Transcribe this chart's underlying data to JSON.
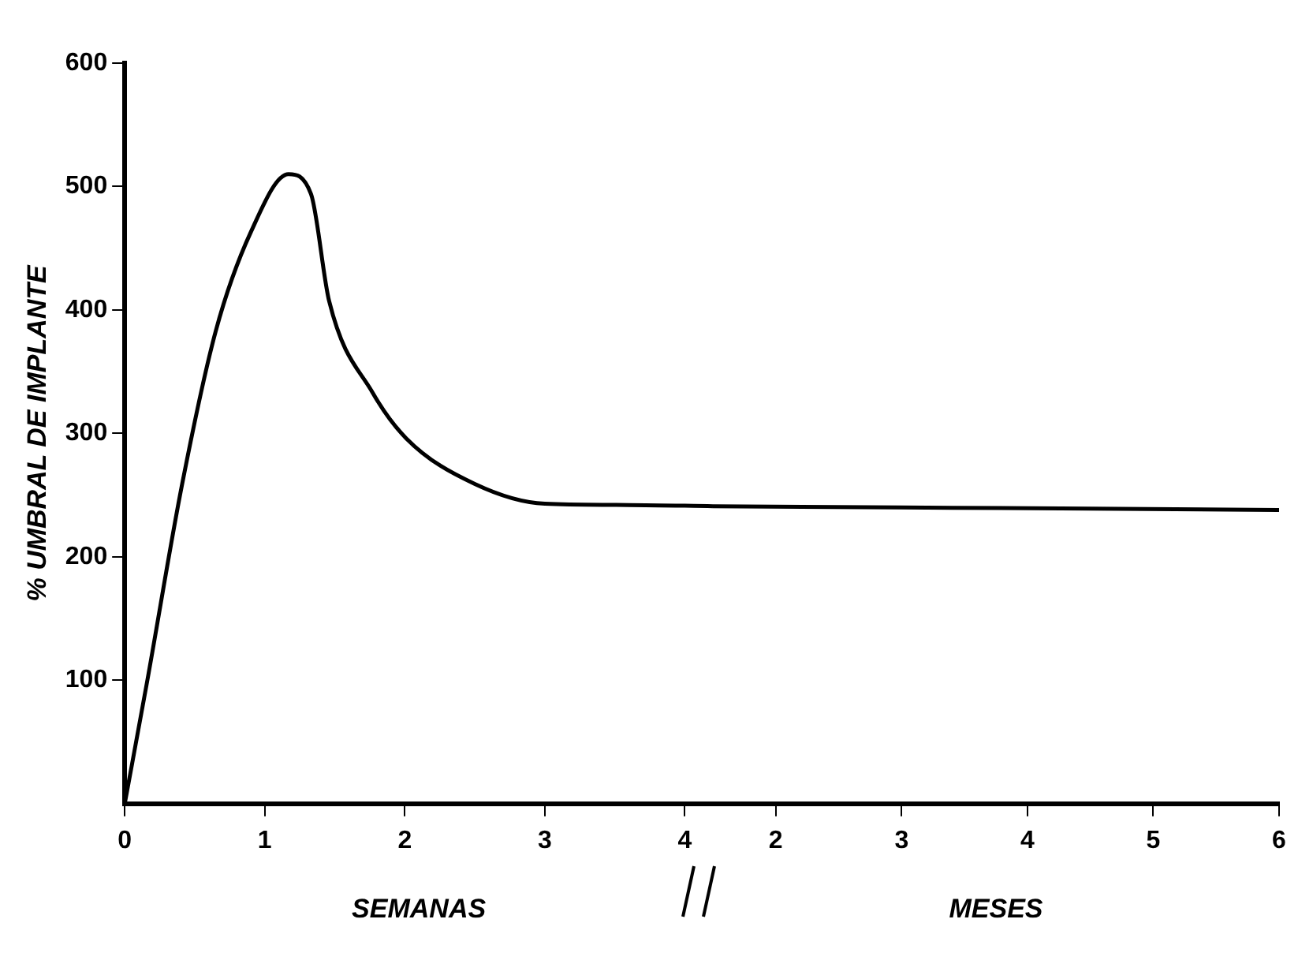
{
  "chart_data": [
    {
      "type": "line",
      "ylabel": "% UMBRAL DE IMPLANTE",
      "xlabel": "SEMANAS",
      "x": [
        0,
        0.16,
        0.41,
        0.65,
        0.9,
        1.17,
        1.33,
        1.46,
        1.77,
        2.01,
        2.5,
        3.0,
        3.6,
        4.2
      ],
      "series": [
        {
          "color": "#000000",
          "values": [
            0,
            99,
            259,
            383,
            463,
            510,
            494,
            407,
            333,
            296,
            259,
            243,
            242,
            241
          ]
        }
      ],
      "xlim": [
        0,
        4.2
      ],
      "xticks": [
        0,
        1,
        2,
        3,
        4
      ],
      "ylim": [
        0,
        600
      ],
      "yticks": [
        100,
        200,
        300,
        400,
        500,
        600
      ],
      "grid": false,
      "legend": false,
      "marker": "none",
      "line_style": "solid"
    },
    {
      "type": "line",
      "xlabel": "MESES",
      "x": [
        1.5,
        3,
        4.5,
        6
      ],
      "series": [
        {
          "color": "#000000",
          "values": [
            241,
            240,
            239,
            238
          ]
        }
      ],
      "xlim": [
        1.5,
        6
      ],
      "xticks": [
        2,
        3,
        4,
        5,
        6
      ],
      "ylim": [
        0,
        600
      ],
      "tick_labels": "x",
      "grid": false,
      "legend": false,
      "marker": "none",
      "line_style": "solid"
    }
  ]
}
